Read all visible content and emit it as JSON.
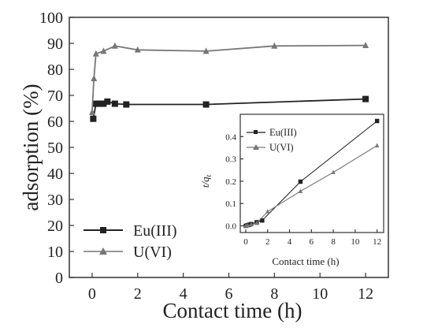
{
  "chart_data": [
    {
      "type": "line",
      "xlabel": "Contact time (h)",
      "ylabel": "adsorption (%)",
      "xlim": [
        -1,
        13
      ],
      "ylim": [
        0,
        100
      ],
      "xticks": [
        "0",
        "2",
        "4",
        "6",
        "8",
        "10",
        "12"
      ],
      "yticks": [
        "0",
        "10",
        "20",
        "30",
        "40",
        "50",
        "60",
        "70",
        "80",
        "90",
        "100"
      ],
      "legend_position": "bottom-left",
      "series": [
        {
          "name": "Eu(III)",
          "marker": "square",
          "color": "#222222",
          "points": [
            [
              0.05,
              61
            ],
            [
              0.17,
              66.8
            ],
            [
              0.33,
              66.8
            ],
            [
              0.5,
              66.8
            ],
            [
              0.67,
              67.6
            ],
            [
              1,
              66.8
            ],
            [
              1.5,
              66.5
            ],
            [
              5,
              66.5
            ],
            [
              12,
              68.6
            ]
          ]
        },
        {
          "name": "U(VI)",
          "marker": "triangle",
          "color": "#777777",
          "points": [
            [
              0,
              63.5
            ],
            [
              0.08,
              76.5
            ],
            [
              0.17,
              86
            ],
            [
              0.5,
              87
            ],
            [
              1,
              89
            ],
            [
              2,
              87.5
            ],
            [
              5,
              87
            ],
            [
              8,
              89
            ],
            [
              12,
              89.2
            ]
          ]
        }
      ]
    },
    {
      "type": "line",
      "xlabel": "Contact time (h)",
      "ylabel_main": "t/q",
      "ylabel_sub": "t",
      "xlim": [
        -0.5,
        12.6
      ],
      "ylim": [
        -0.03,
        0.5
      ],
      "xticks": [
        "0",
        "2",
        "4",
        "6",
        "8",
        "10",
        "12"
      ],
      "yticks": [
        "0.0",
        "0.1",
        "0.2",
        "0.3",
        "0.4"
      ],
      "legend_position": "top-left",
      "series": [
        {
          "name": "Eu(III)",
          "marker": "square",
          "color": "#222222",
          "points": [
            [
              0,
              0
            ],
            [
              0.17,
              0.003
            ],
            [
              0.33,
              0.005
            ],
            [
              0.5,
              0.008
            ],
            [
              1,
              0.016
            ],
            [
              1.5,
              0.024
            ],
            [
              5,
              0.198
            ],
            [
              12,
              0.47
            ]
          ]
        },
        {
          "name": "U(VI)",
          "marker": "triangle",
          "color": "#777777",
          "points": [
            [
              0,
              0
            ],
            [
              0.17,
              0.002
            ],
            [
              0.5,
              0.006
            ],
            [
              1,
              0.012
            ],
            [
              2,
              0.064
            ],
            [
              5,
              0.155
            ],
            [
              8,
              0.24
            ],
            [
              12,
              0.36
            ]
          ]
        }
      ]
    }
  ]
}
